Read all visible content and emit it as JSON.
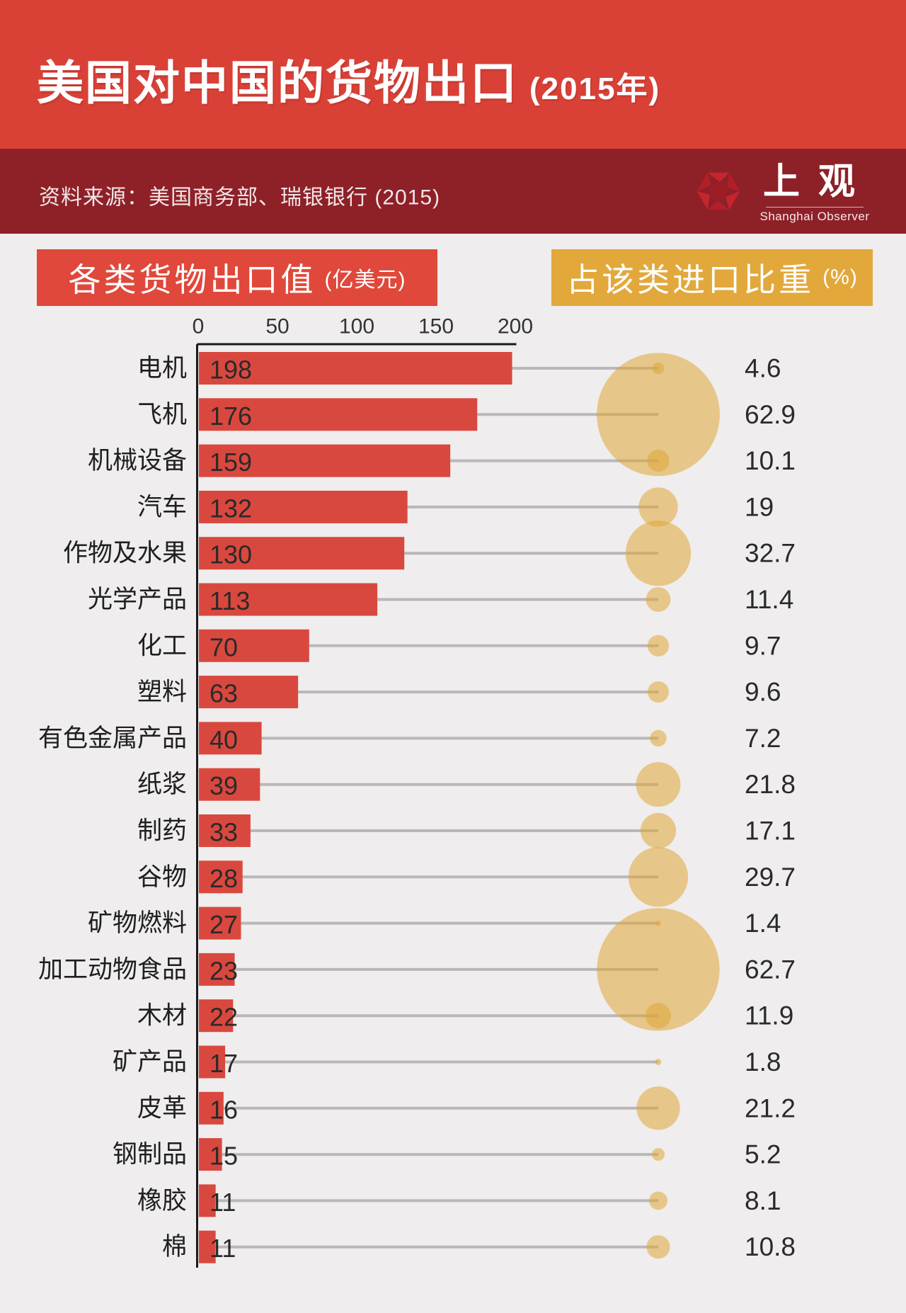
{
  "page": {
    "title": "美国对中国的货物出口",
    "title_suffix": "(2015年)",
    "source": "资料来源：美国商务部、瑞银银行 (2015)",
    "logo": {
      "icon": "aperture-hexagon-icon",
      "name": "上观",
      "subtitle": "Shanghai Observer"
    }
  },
  "sections": {
    "left_header": {
      "label": "各类货物出口值",
      "unit": "(亿美元)",
      "color": "#e0483b"
    },
    "right_header": {
      "label": "占该类进口比重",
      "unit": "(%)",
      "color": "#e2a83b"
    }
  },
  "chart_data": {
    "type": "bar",
    "title": "美国对中国的货物出口 (2015年)",
    "categories": [
      "电机",
      "飞机",
      "机械设备",
      "汽车",
      "作物及水果",
      "光学产品",
      "化工",
      "塑料",
      "有色金属产品",
      "纸浆",
      "制药",
      "谷物",
      "矿物燃料",
      "加工动物食品",
      "木材",
      "矿产品",
      "皮革",
      "钢制品",
      "橡胶",
      "棉"
    ],
    "series": [
      {
        "name": "各类货物出口值",
        "unit": "亿美元",
        "type": "bar",
        "values": [
          198,
          176,
          159,
          132,
          130,
          113,
          70,
          63,
          40,
          39,
          33,
          28,
          27,
          23,
          22,
          17,
          16,
          15,
          11,
          11
        ]
      },
      {
        "name": "占该类进口比重",
        "unit": "%",
        "type": "bubble",
        "values": [
          4.6,
          62.9,
          10.1,
          19,
          32.7,
          11.4,
          9.7,
          9.6,
          7.2,
          21.8,
          17.1,
          29.7,
          1.4,
          62.7,
          11.9,
          1.8,
          21.2,
          5.2,
          8.1,
          10.8
        ]
      }
    ],
    "x_axis": {
      "ticks": [
        0,
        50,
        100,
        150,
        200
      ],
      "range": [
        0,
        200
      ],
      "grid": false
    },
    "legend_position": "none",
    "colors": {
      "banner_red": "#d94137",
      "banner_maroon": "#8e2028",
      "bar": "#d9483e",
      "bubble": "rgba(223,165,55,0.55)",
      "connector_line": "#b9b7b7",
      "axis": "#1a1a1a",
      "background": "#efeded",
      "text_dark": "#2a2a2a"
    }
  }
}
